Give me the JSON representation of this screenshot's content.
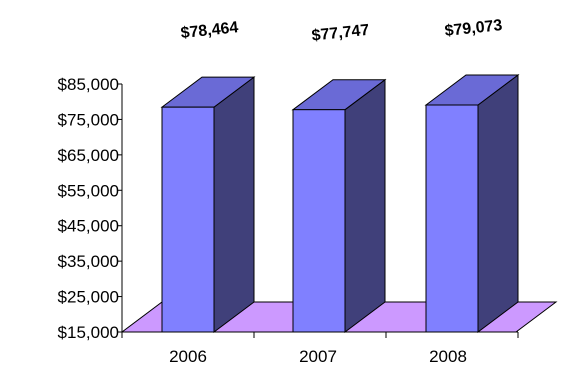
{
  "chart_data": {
    "type": "bar",
    "categories": [
      "2006",
      "2007",
      "2008"
    ],
    "values": [
      78464,
      77747,
      79073
    ],
    "data_labels": [
      "$78,464",
      "$77,747",
      "$79,073"
    ],
    "y_ticks": [
      "$15,000",
      "$25,000",
      "$35,000",
      "$45,000",
      "$55,000",
      "$65,000",
      "$75,000",
      "$85,000"
    ],
    "y_tick_values": [
      15000,
      25000,
      35000,
      45000,
      55000,
      65000,
      75000,
      85000
    ],
    "ylim": [
      15000,
      85000
    ],
    "title": "",
    "xlabel": "",
    "ylabel": "",
    "grid": false,
    "legend": "none",
    "style": "3d-column"
  },
  "colors": {
    "bar_front": "#8080ff",
    "bar_top": "#6a6ad6",
    "bar_side": "#40407a",
    "floor": "#cc99ff",
    "axis": "#000000"
  }
}
